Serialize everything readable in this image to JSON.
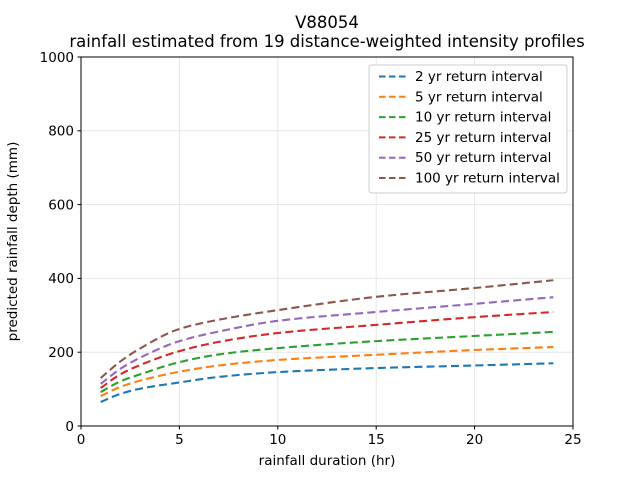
{
  "chart_data": {
    "type": "line",
    "title": "V88054",
    "subtitle": "rainfall estimated from 19 distance-weighted intensity profiles",
    "xlabel": "rainfall duration (hr)",
    "ylabel": "predicted rainfall depth (mm)",
    "xlim": [
      0,
      25
    ],
    "ylim": [
      0,
      1000
    ],
    "xticks": [
      "0",
      "5",
      "10",
      "15",
      "20",
      "25"
    ],
    "yticks": [
      "0",
      "200",
      "400",
      "600",
      "800",
      "1000"
    ],
    "grid": true,
    "legend_position": "upper right",
    "line_style": "dashed",
    "x": [
      1,
      2,
      3,
      5,
      7,
      10,
      15,
      20,
      24
    ],
    "series": [
      {
        "name": "2 yr return interval",
        "color": "#1f77b4",
        "values": [
          65,
          87,
          101,
          118,
          133,
          146,
          157,
          164,
          170
        ]
      },
      {
        "name": "5 yr return interval",
        "color": "#ff7f0e",
        "values": [
          81,
          106,
          123,
          147,
          164,
          179,
          193,
          206,
          214
        ]
      },
      {
        "name": "10 yr return interval",
        "color": "#2ca02c",
        "values": [
          92,
          121,
          140,
          173,
          194,
          211,
          230,
          244,
          255
        ]
      },
      {
        "name": "25 yr return interval",
        "color": "#d62728",
        "values": [
          103,
          140,
          165,
          203,
          228,
          252,
          274,
          295,
          309
        ]
      },
      {
        "name": "50 yr return interval",
        "color": "#9467bd",
        "values": [
          114,
          155,
          185,
          230,
          256,
          285,
          309,
          331,
          349
        ]
      },
      {
        "name": "100 yr return interval",
        "color": "#8c564b",
        "values": [
          130,
          175,
          210,
          263,
          288,
          314,
          350,
          374,
          395
        ]
      }
    ],
    "style": {
      "background": "#ffffff",
      "grid_color": "#e6e6e6",
      "spine_color": "#000000",
      "legend_border": "#cccccc",
      "text_color": "#000000"
    }
  }
}
